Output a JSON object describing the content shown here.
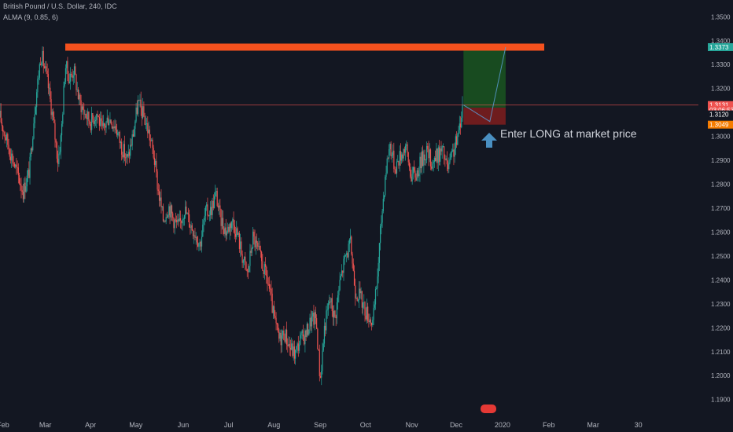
{
  "legend": {
    "title": "British Pound / U.S. Dollar, 240, IDC",
    "indicator": "ALMA (9, 0.85, 6)"
  },
  "annotation": "Enter LONG at market price",
  "chart_data": {
    "type": "candlestick",
    "title": "",
    "xlabel": "",
    "ylabel": "",
    "ylim": [
      1.183,
      1.357
    ],
    "grid": false,
    "legend_position": "top-left",
    "y_ticks": [
      "1.3500",
      "1.3400",
      "1.3300",
      "1.3200",
      "1.3100",
      "1.3000",
      "1.2900",
      "1.2800",
      "1.2700",
      "1.2600",
      "1.2500",
      "1.2400",
      "1.2300",
      "1.2200",
      "1.2100",
      "1.2000",
      "1.1900"
    ],
    "x_ticks": [
      {
        "label": "Feb",
        "t": 0.3
      },
      {
        "label": "Mar",
        "t": 4.3
      },
      {
        "label": "Apr",
        "t": 8.6
      },
      {
        "label": "May",
        "t": 12.9
      },
      {
        "label": "Jun",
        "t": 17.4
      },
      {
        "label": "Jul",
        "t": 21.7
      },
      {
        "label": "Aug",
        "t": 26.0
      },
      {
        "label": "Sep",
        "t": 30.4
      },
      {
        "label": "Oct",
        "t": 34.7
      },
      {
        "label": "Nov",
        "t": 39.1
      },
      {
        "label": "Dec",
        "t": 43.3
      },
      {
        "label": "2020",
        "t": 47.7
      },
      {
        "label": "Feb",
        "t": 52.1
      },
      {
        "label": "Mar",
        "t": 56.3
      },
      {
        "label": "30",
        "t": 60.6
      }
    ],
    "x_range": [
      0,
      66.3
    ],
    "price_path": [
      [
        0,
        1.308
      ],
      [
        0.8,
        1.296
      ],
      [
        1.6,
        1.285
      ],
      [
        2.2,
        1.277
      ],
      [
        2.8,
        1.286
      ],
      [
        3.3,
        1.312
      ],
      [
        3.9,
        1.335
      ],
      [
        4.5,
        1.323
      ],
      [
        5.0,
        1.308
      ],
      [
        5.5,
        1.29
      ],
      [
        5.8,
        1.3
      ],
      [
        6.2,
        1.33
      ],
      [
        6.6,
        1.324
      ],
      [
        7.0,
        1.328
      ],
      [
        7.5,
        1.315
      ],
      [
        8.0,
        1.31
      ],
      [
        8.6,
        1.306
      ],
      [
        9.2,
        1.31
      ],
      [
        9.7,
        1.302
      ],
      [
        10.3,
        1.308
      ],
      [
        11.0,
        1.304
      ],
      [
        11.5,
        1.296
      ],
      [
        12.1,
        1.29
      ],
      [
        12.6,
        1.3
      ],
      [
        13.1,
        1.314
      ],
      [
        13.6,
        1.309
      ],
      [
        14.1,
        1.302
      ],
      [
        14.6,
        1.292
      ],
      [
        15.0,
        1.278
      ],
      [
        15.5,
        1.265
      ],
      [
        16.0,
        1.271
      ],
      [
        16.5,
        1.265
      ],
      [
        17.0,
        1.262
      ],
      [
        17.5,
        1.27
      ],
      [
        18.0,
        1.264
      ],
      [
        18.5,
        1.26
      ],
      [
        19.0,
        1.255
      ],
      [
        19.5,
        1.268
      ],
      [
        20.0,
        1.269
      ],
      [
        20.5,
        1.276
      ],
      [
        20.9,
        1.266
      ],
      [
        21.5,
        1.26
      ],
      [
        22.0,
        1.265
      ],
      [
        22.5,
        1.26
      ],
      [
        23.0,
        1.25
      ],
      [
        23.5,
        1.242
      ],
      [
        24.0,
        1.258
      ],
      [
        24.5,
        1.252
      ],
      [
        25.0,
        1.245
      ],
      [
        25.5,
        1.238
      ],
      [
        26.0,
        1.224
      ],
      [
        26.5,
        1.215
      ],
      [
        27.0,
        1.218
      ],
      [
        27.5,
        1.212
      ],
      [
        28.0,
        1.209
      ],
      [
        28.5,
        1.215
      ],
      [
        29.0,
        1.217
      ],
      [
        29.5,
        1.223
      ],
      [
        30.0,
        1.224
      ],
      [
        30.4,
        1.198
      ],
      [
        30.8,
        1.22
      ],
      [
        31.3,
        1.232
      ],
      [
        31.8,
        1.224
      ],
      [
        32.3,
        1.24
      ],
      [
        32.8,
        1.25
      ],
      [
        33.3,
        1.255
      ],
      [
        33.7,
        1.236
      ],
      [
        34.2,
        1.233
      ],
      [
        34.6,
        1.228
      ],
      [
        35.0,
        1.225
      ],
      [
        35.4,
        1.222
      ],
      [
        35.8,
        1.24
      ],
      [
        36.2,
        1.265
      ],
      [
        36.6,
        1.285
      ],
      [
        37.0,
        1.297
      ],
      [
        37.5,
        1.287
      ],
      [
        38.0,
        1.292
      ],
      [
        38.5,
        1.296
      ],
      [
        39.0,
        1.284
      ],
      [
        39.5,
        1.284
      ],
      [
        40.0,
        1.29
      ],
      [
        40.5,
        1.294
      ],
      [
        41.0,
        1.289
      ],
      [
        41.5,
        1.292
      ],
      [
        42.0,
        1.294
      ],
      [
        42.5,
        1.286
      ],
      [
        43.0,
        1.293
      ],
      [
        43.5,
        1.3
      ],
      [
        43.9,
        1.313
      ]
    ],
    "resistance_level": 1.3373,
    "current_price": 1.3131,
    "entry_price": 1.312,
    "stop_loss": 1.3049,
    "take_profit": 1.3373,
    "position_x_range": [
      44.0,
      48.0
    ],
    "projection": [
      [
        44.0,
        1.3131
      ],
      [
        46.5,
        1.3062
      ],
      [
        48.0,
        1.3373
      ]
    ],
    "price_labels": [
      {
        "text": "1.3373",
        "color": "#26a69a",
        "price": 1.3373
      },
      {
        "text": "1.3131",
        "color": "#ef5350",
        "price": 1.3131
      },
      {
        "text": "03:06:53",
        "color": "#ef5350",
        "price": 1.3111
      },
      {
        "text": "1.3120",
        "color": "#131722",
        "price": 1.3092
      },
      {
        "text": "1.3049",
        "color": "#f57c00",
        "price": 1.3049
      }
    ],
    "colors": {
      "up": "#26a69a",
      "down": "#ef5350",
      "resistance": "#f4511e",
      "profit_zone": "#1b5e20",
      "loss_zone": "#7f1d1d",
      "arrow": "#4a90c2",
      "axis_text": "#b2b5be",
      "price_line": "#ef5350"
    }
  }
}
